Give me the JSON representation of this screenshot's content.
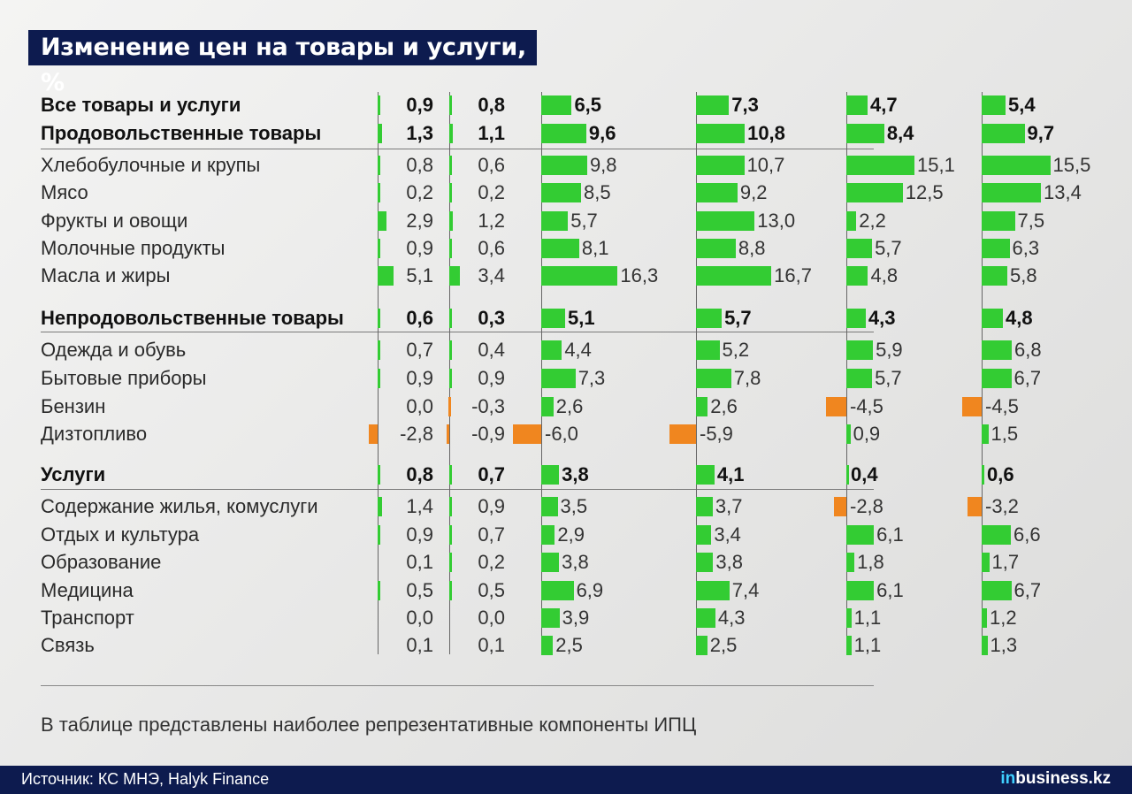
{
  "title": "Изменение цен на товары и услуги, %",
  "note": "В таблице представлены наиболее репрезентативные компоненты ИПЦ",
  "source": "Источник: КС МНЭ, Halyk Finance",
  "brand": {
    "prefix": "in",
    "rest": "business.kz"
  },
  "colors": {
    "header_bg": "#0d1b4f",
    "positive": "#33cc33",
    "negative": "#f0861f"
  },
  "chart_data": {
    "type": "bar",
    "columns": 6,
    "rows": [
      {
        "label": "Все товары и услуги",
        "bold": true,
        "values": [
          0.9,
          0.8,
          6.5,
          7.3,
          4.7,
          5.4
        ]
      },
      {
        "label": "Продовольственные товары",
        "bold": true,
        "values": [
          1.3,
          1.1,
          9.6,
          10.8,
          8.4,
          9.7
        ]
      },
      {
        "label": "Хлебобулочные и крупы",
        "bold": false,
        "values": [
          0.8,
          0.6,
          9.8,
          10.7,
          15.1,
          15.5
        ]
      },
      {
        "label": "Мясо",
        "bold": false,
        "values": [
          0.2,
          0.2,
          8.5,
          9.2,
          12.5,
          13.4
        ]
      },
      {
        "label": "Фрукты и овощи",
        "bold": false,
        "values": [
          2.9,
          1.2,
          5.7,
          13.0,
          2.2,
          7.5
        ]
      },
      {
        "label": "Молочные продукты",
        "bold": false,
        "values": [
          0.9,
          0.6,
          8.1,
          8.8,
          5.7,
          6.3
        ]
      },
      {
        "label": "Масла и жиры",
        "bold": false,
        "values": [
          5.1,
          3.4,
          16.3,
          16.7,
          4.8,
          5.8
        ]
      },
      {
        "label": "Непродовольственные товары",
        "bold": true,
        "values": [
          0.6,
          0.3,
          5.1,
          5.7,
          4.3,
          4.8
        ]
      },
      {
        "label": "Одежда и обувь",
        "bold": false,
        "values": [
          0.7,
          0.4,
          4.4,
          5.2,
          5.9,
          6.8
        ]
      },
      {
        "label": "Бытовые приборы",
        "bold": false,
        "values": [
          0.9,
          0.9,
          7.3,
          7.8,
          5.7,
          6.7
        ]
      },
      {
        "label": "Бензин",
        "bold": false,
        "values": [
          0.0,
          -0.3,
          2.6,
          2.6,
          -4.5,
          -4.5
        ]
      },
      {
        "label": "Дизтопливо",
        "bold": false,
        "values": [
          -2.8,
          -0.9,
          -6.0,
          -5.9,
          0.9,
          1.5
        ]
      },
      {
        "label": "Услуги",
        "bold": true,
        "values": [
          0.8,
          0.7,
          3.8,
          4.1,
          0.4,
          0.6
        ]
      },
      {
        "label": "Содержание жилья, комуслуги",
        "bold": false,
        "values": [
          1.4,
          0.9,
          3.5,
          3.7,
          -2.8,
          -3.2
        ]
      },
      {
        "label": "Отдых и культура",
        "bold": false,
        "values": [
          0.9,
          0.7,
          2.9,
          3.4,
          6.1,
          6.6
        ]
      },
      {
        "label": "Образование",
        "bold": false,
        "values": [
          0.1,
          0.2,
          3.8,
          3.8,
          1.8,
          1.7
        ]
      },
      {
        "label": "Медицина",
        "bold": false,
        "values": [
          0.5,
          0.5,
          6.9,
          7.4,
          6.1,
          6.7
        ]
      },
      {
        "label": "Транспорт",
        "bold": false,
        "values": [
          0.0,
          0.0,
          3.9,
          4.3,
          1.1,
          1.2
        ]
      },
      {
        "label": "Связь",
        "bold": false,
        "values": [
          0.1,
          0.1,
          2.5,
          2.5,
          1.1,
          1.3
        ]
      }
    ]
  }
}
